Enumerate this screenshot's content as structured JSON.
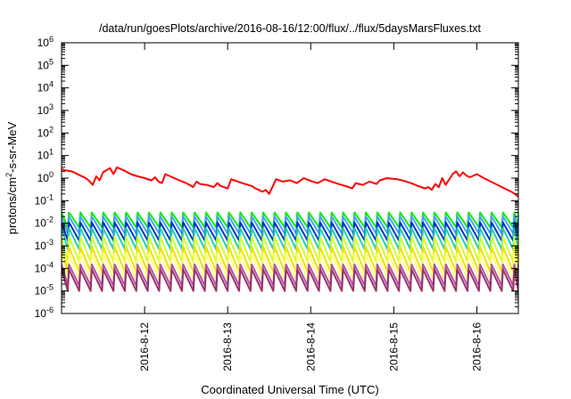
{
  "chart_data": {
    "type": "line",
    "title": "/data/run/goesPlots/archive/2016-08-16/12:00/flux/../flux/5daysMarsFluxes.txt",
    "xlabel": "Coordinated Universal Time (UTC)",
    "ylabel": "protons/cm2-s-sr-MeV",
    "ylabel_base": "protons/cm",
    "ylabel_sup": "2",
    "ylabel_rest": "-s-sr-MeV",
    "y_scale": "log",
    "ylim": [
      1e-06,
      1000000
    ],
    "xlim": [
      "2016-08-11T00:00",
      "2016-08-16T12:00"
    ],
    "grid": false,
    "legend": "none",
    "x_ticks": [
      {
        "value": "2016-08-12",
        "label": "2016-8-12"
      },
      {
        "value": "2016-08-13",
        "label": "2016-8-13"
      },
      {
        "value": "2016-08-14",
        "label": "2016-8-14"
      },
      {
        "value": "2016-08-15",
        "label": "2016-8-15"
      },
      {
        "value": "2016-08-16",
        "label": "2016-8-16"
      }
    ],
    "y_ticks": [
      {
        "value": 1e-06,
        "base": "10",
        "exp": "-6"
      },
      {
        "value": 1e-05,
        "base": "10",
        "exp": "-5"
      },
      {
        "value": 0.0001,
        "base": "10",
        "exp": "-4"
      },
      {
        "value": 0.001,
        "base": "10",
        "exp": "-3"
      },
      {
        "value": 0.01,
        "base": "10",
        "exp": "-2"
      },
      {
        "value": 0.1,
        "base": "10",
        "exp": "-1"
      },
      {
        "value": 1,
        "base": "10",
        "exp": "0"
      },
      {
        "value": 10,
        "base": "10",
        "exp": "1"
      },
      {
        "value": 100,
        "base": "10",
        "exp": "2"
      },
      {
        "value": 1000,
        "base": "10",
        "exp": "3"
      },
      {
        "value": 10000,
        "base": "10",
        "exp": "4"
      },
      {
        "value": 100000,
        "base": "10",
        "exp": "5"
      },
      {
        "value": 1000000,
        "base": "10",
        "exp": "6"
      }
    ],
    "sawtooth_period_hours": 3.3,
    "series": [
      {
        "color": "#ff0000",
        "style": "points",
        "points": [
          [
            "2016-08-11T00:00",
            2.5
          ],
          [
            "2016-08-11T01:00",
            2.2
          ],
          [
            "2016-08-11T03:00",
            2.0
          ],
          [
            "2016-08-11T05:00",
            1.4
          ],
          [
            "2016-08-11T07:00",
            1.0
          ],
          [
            "2016-08-11T08:00",
            0.75
          ],
          [
            "2016-08-11T09:00",
            0.5
          ],
          [
            "2016-08-11T10:00",
            1.2
          ],
          [
            "2016-08-11T11:00",
            0.8
          ],
          [
            "2016-08-11T12:00",
            1.8
          ],
          [
            "2016-08-11T14:00",
            2.8
          ],
          [
            "2016-08-11T15:00",
            1.5
          ],
          [
            "2016-08-11T16:00",
            3.0
          ],
          [
            "2016-08-11T18:00",
            2.2
          ],
          [
            "2016-08-11T20:00",
            1.5
          ],
          [
            "2016-08-11T22:00",
            1.2
          ],
          [
            "2016-08-12T00:00",
            1.0
          ],
          [
            "2016-08-12T02:00",
            0.8
          ],
          [
            "2016-08-12T03:00",
            1.1
          ],
          [
            "2016-08-12T04:00",
            0.7
          ],
          [
            "2016-08-12T05:00",
            0.6
          ],
          [
            "2016-08-12T06:00",
            1.5
          ],
          [
            "2016-08-12T08:00",
            1.1
          ],
          [
            "2016-08-12T10:00",
            0.8
          ],
          [
            "2016-08-12T12:00",
            0.6
          ],
          [
            "2016-08-12T13:00",
            0.5
          ],
          [
            "2016-08-12T14:00",
            0.4
          ],
          [
            "2016-08-12T15:00",
            0.7
          ],
          [
            "2016-08-12T16:00",
            0.55
          ],
          [
            "2016-08-12T18:00",
            0.5
          ],
          [
            "2016-08-12T20:00",
            0.4
          ],
          [
            "2016-08-12T21:00",
            0.6
          ],
          [
            "2016-08-12T22:00",
            0.45
          ],
          [
            "2016-08-13T00:00",
            0.35
          ],
          [
            "2016-08-13T01:00",
            0.9
          ],
          [
            "2016-08-13T03:00",
            0.7
          ],
          [
            "2016-08-13T05:00",
            0.55
          ],
          [
            "2016-08-13T07:00",
            0.45
          ],
          [
            "2016-08-13T08:00",
            0.35
          ],
          [
            "2016-08-13T09:00",
            0.3
          ],
          [
            "2016-08-13T10:00",
            0.25
          ],
          [
            "2016-08-13T11:00",
            0.3
          ],
          [
            "2016-08-13T12:00",
            0.2
          ],
          [
            "2016-08-13T14:00",
            0.9
          ],
          [
            "2016-08-13T16:00",
            0.7
          ],
          [
            "2016-08-13T18:00",
            0.8
          ],
          [
            "2016-08-13T20:00",
            0.6
          ],
          [
            "2016-08-13T22:00",
            1.0
          ],
          [
            "2016-08-14T00:00",
            0.75
          ],
          [
            "2016-08-14T02:00",
            0.6
          ],
          [
            "2016-08-14T04:00",
            0.9
          ],
          [
            "2016-08-14T06:00",
            0.7
          ],
          [
            "2016-08-14T08:00",
            0.55
          ],
          [
            "2016-08-14T10:00",
            0.45
          ],
          [
            "2016-08-14T12:00",
            0.35
          ],
          [
            "2016-08-14T13:00",
            0.6
          ],
          [
            "2016-08-14T15:00",
            0.5
          ],
          [
            "2016-08-14T17:00",
            0.7
          ],
          [
            "2016-08-14T19:00",
            0.55
          ],
          [
            "2016-08-14T20:00",
            0.8
          ],
          [
            "2016-08-14T22:00",
            1.0
          ],
          [
            "2016-08-15T01:00",
            0.9
          ],
          [
            "2016-08-15T03:00",
            0.75
          ],
          [
            "2016-08-15T05:00",
            0.6
          ],
          [
            "2016-08-15T07:00",
            0.45
          ],
          [
            "2016-08-15T09:00",
            0.35
          ],
          [
            "2016-08-15T10:00",
            0.4
          ],
          [
            "2016-08-15T11:00",
            0.3
          ],
          [
            "2016-08-15T12:00",
            0.55
          ],
          [
            "2016-08-15T13:00",
            0.4
          ],
          [
            "2016-08-15T14:00",
            1.0
          ],
          [
            "2016-08-15T15:00",
            0.5
          ],
          [
            "2016-08-15T17:00",
            1.5
          ],
          [
            "2016-08-15T18:00",
            2.0
          ],
          [
            "2016-08-15T19:00",
            1.2
          ],
          [
            "2016-08-15T20:00",
            1.8
          ],
          [
            "2016-08-15T21:00",
            1.3
          ],
          [
            "2016-08-15T22:00",
            1.1
          ],
          [
            "2016-08-16T00:00",
            1.5
          ],
          [
            "2016-08-16T02:00",
            1.0
          ],
          [
            "2016-08-16T04:00",
            0.7
          ],
          [
            "2016-08-16T06:00",
            0.5
          ],
          [
            "2016-08-16T08:00",
            0.35
          ],
          [
            "2016-08-16T10:00",
            0.25
          ],
          [
            "2016-08-16T11:00",
            0.2
          ],
          [
            "2016-08-16T12:00",
            0.15
          ]
        ]
      },
      {
        "color": "#00ee00",
        "style": "sawtooth",
        "min": 0.0065,
        "max": 0.03
      },
      {
        "color": "#4aa0ff",
        "style": "sawtooth",
        "min": 0.0035,
        "max": 0.02
      },
      {
        "color": "#0033cc",
        "style": "sawtooth",
        "min": 0.0017,
        "max": 0.011
      },
      {
        "color": "#20d0b0",
        "style": "sawtooth",
        "min": 0.0007,
        "max": 0.006
      },
      {
        "color": "#ccff33",
        "style": "sawtooth",
        "min": 0.0002,
        "max": 0.0025
      },
      {
        "color": "#f0e000",
        "style": "sawtooth",
        "min": 7e-05,
        "max": 0.0009
      },
      {
        "color": "#ffff80",
        "style": "sawtooth",
        "min": 3e-05,
        "max": 0.00045
      },
      {
        "color": "#b050b0",
        "style": "sawtooth",
        "min": 1.7e-05,
        "max": 0.00015
      },
      {
        "color": "#993366",
        "style": "sawtooth",
        "min": 1e-05,
        "max": 9e-05
      }
    ]
  }
}
